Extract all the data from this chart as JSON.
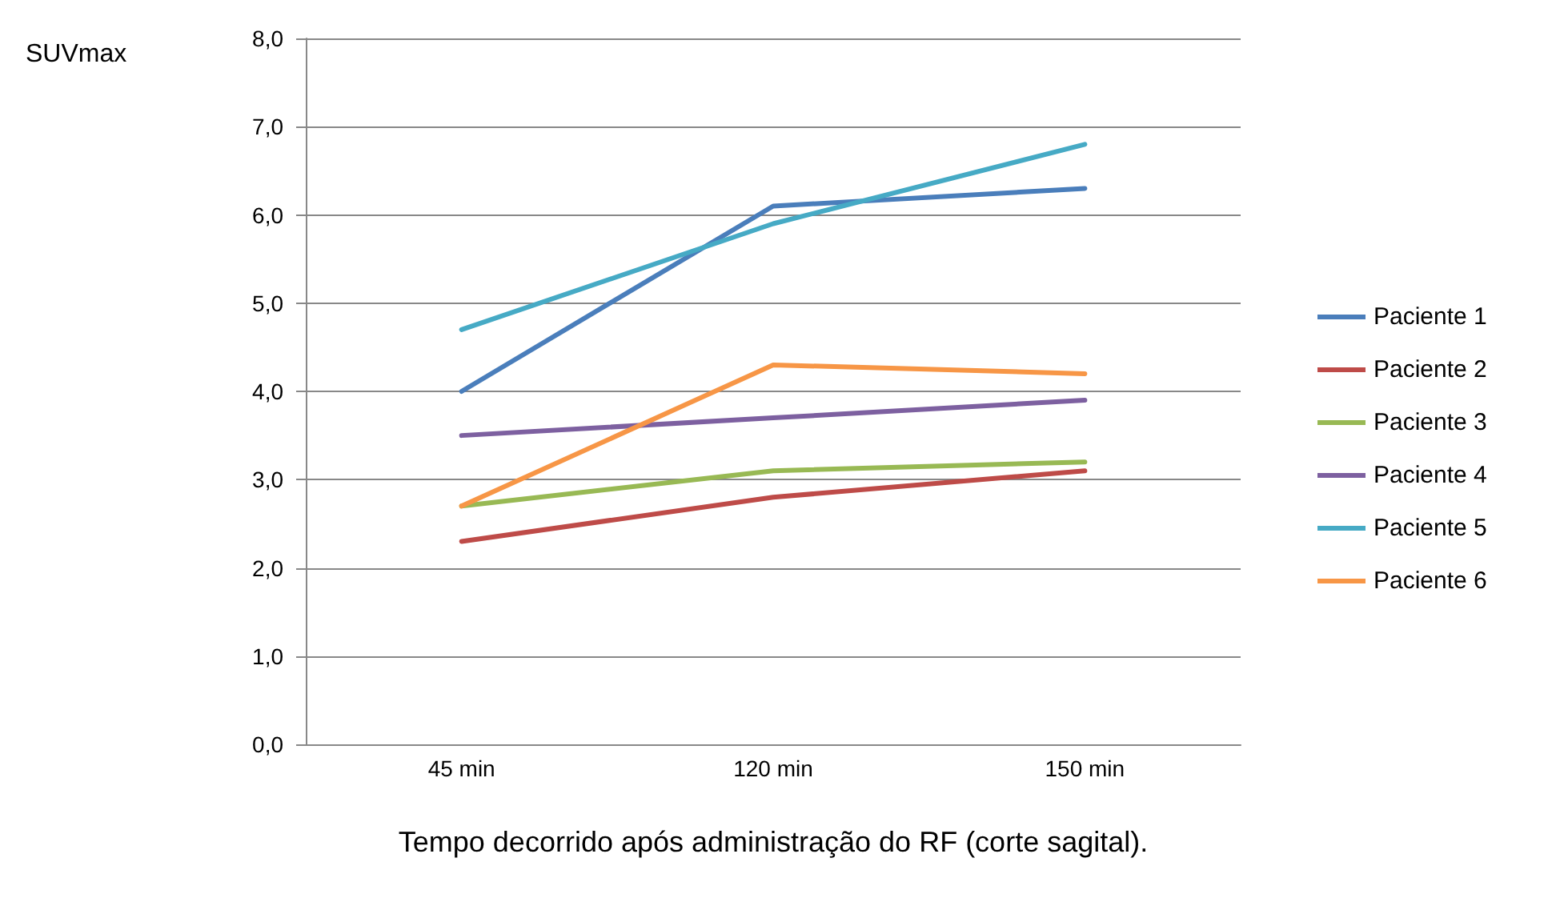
{
  "chart_data": {
    "type": "line",
    "xlabel": "Tempo decorrido após administração do RF (corte sagital).",
    "ylabel": "SUVmax",
    "categories": [
      "45 min",
      "120 min",
      "150 min"
    ],
    "series": [
      {
        "name": "Paciente 1",
        "color": "#4a7ebb",
        "values": [
          4.0,
          6.1,
          6.3
        ]
      },
      {
        "name": "Paciente 2",
        "color": "#be4b48",
        "values": [
          2.3,
          2.8,
          3.1
        ]
      },
      {
        "name": "Paciente 3",
        "color": "#98b954",
        "values": [
          2.7,
          3.1,
          3.2
        ]
      },
      {
        "name": "Paciente 4",
        "color": "#7d60a0",
        "values": [
          3.5,
          3.7,
          3.9
        ]
      },
      {
        "name": "Paciente 5",
        "color": "#46aac5",
        "values": [
          4.7,
          5.9,
          6.8
        ]
      },
      {
        "name": "Paciente 6",
        "color": "#f79646",
        "values": [
          2.7,
          4.3,
          4.2
        ]
      }
    ],
    "ylim": [
      0,
      8
    ],
    "yticks": [
      {
        "value": 0,
        "label": "0,0"
      },
      {
        "value": 1,
        "label": "1,0"
      },
      {
        "value": 2,
        "label": "2,0"
      },
      {
        "value": 3,
        "label": "3,0"
      },
      {
        "value": 4,
        "label": "4,0"
      },
      {
        "value": 5,
        "label": "5,0"
      },
      {
        "value": 6,
        "label": "6,0"
      },
      {
        "value": 7,
        "label": "7,0"
      },
      {
        "value": 8,
        "label": "8,0"
      }
    ],
    "grid": "y",
    "legend": "right",
    "marker": "none",
    "line_style": "solid"
  }
}
